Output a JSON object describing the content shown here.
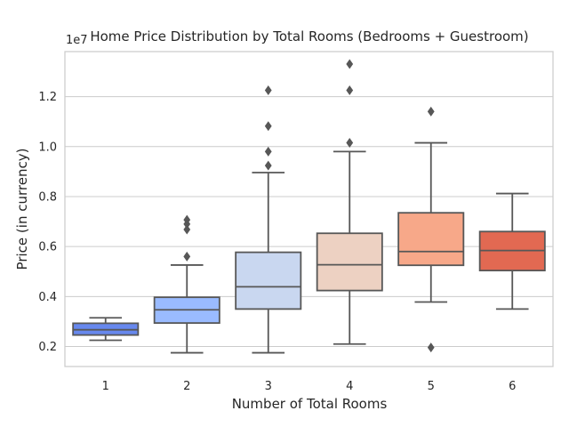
{
  "chart_data": {
    "type": "box",
    "title": "Home Price Distribution by Total Rooms (Bedrooms + Guestroom)",
    "xlabel": "Number of Total Rooms",
    "ylabel": "Price (in currency)",
    "y_offset_label": "1e7",
    "ylim": [
      0.12,
      1.38
    ],
    "y_ticks": [
      0.2,
      0.4,
      0.6,
      0.8,
      1.0,
      1.2
    ],
    "y_tick_labels": [
      "0.2",
      "0.4",
      "0.6",
      "0.8",
      "1.0",
      "1.2"
    ],
    "grid": true,
    "categories": [
      "1",
      "2",
      "3",
      "4",
      "5",
      "6"
    ],
    "colors": [
      "#6788ee",
      "#9abbff",
      "#c9d7f0",
      "#edd1c2",
      "#f7a889",
      "#e26952"
    ],
    "line_color": "#575757",
    "grid_color": "#cccccc",
    "spine_color": "#cccccc",
    "boxes": [
      {
        "category": "1",
        "whisker_low": 0.225,
        "q1": 0.246,
        "median": 0.267,
        "q3": 0.293,
        "whisker_high": 0.315,
        "outliers": []
      },
      {
        "category": "2",
        "whisker_low": 0.175,
        "q1": 0.294,
        "median": 0.347,
        "q3": 0.397,
        "whisker_high": 0.526,
        "outliers": [
          0.56,
          0.668,
          0.69,
          0.707
        ]
      },
      {
        "category": "3",
        "whisker_low": 0.175,
        "q1": 0.35,
        "median": 0.439,
        "q3": 0.577,
        "whisker_high": 0.896,
        "outliers": [
          0.924,
          0.98,
          1.082,
          1.225
        ]
      },
      {
        "category": "4",
        "whisker_low": 0.21,
        "q1": 0.424,
        "median": 0.527,
        "q3": 0.653,
        "whisker_high": 0.98,
        "outliers": [
          1.015,
          1.225,
          1.33
        ]
      },
      {
        "category": "5",
        "whisker_low": 0.378,
        "q1": 0.525,
        "median": 0.58,
        "q3": 0.735,
        "whisker_high": 1.015,
        "outliers": [
          0.196,
          1.14
        ]
      },
      {
        "category": "6",
        "whisker_low": 0.35,
        "q1": 0.504,
        "median": 0.584,
        "q3": 0.66,
        "whisker_high": 0.812,
        "outliers": []
      }
    ]
  }
}
